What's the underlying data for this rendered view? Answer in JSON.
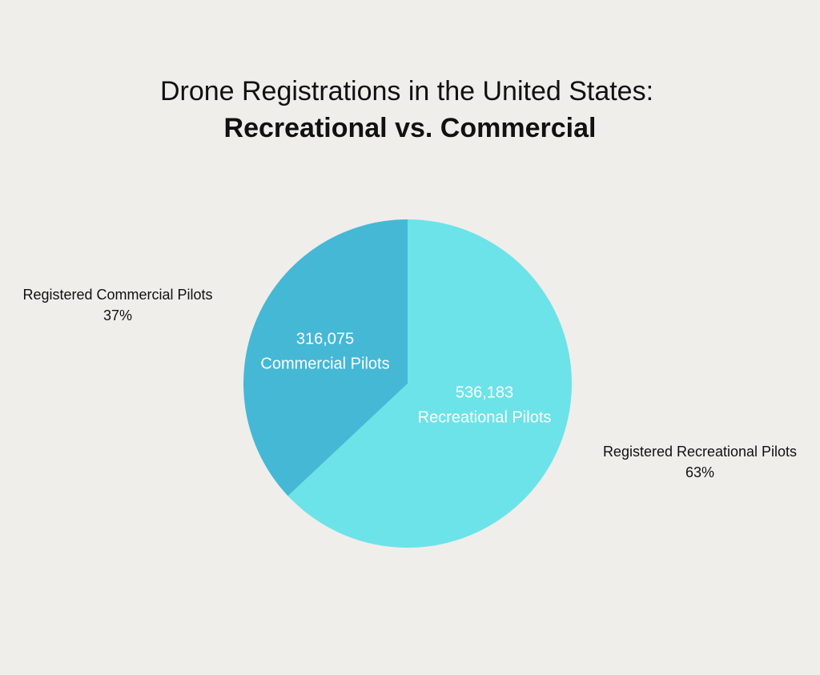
{
  "chart_data": {
    "type": "pie",
    "title": "Drone Registrations in the United States:",
    "subtitle": "Recreational vs. Commercial",
    "categories": [
      "Registered Recreational Pilots",
      "Registered Commercial Pilots"
    ],
    "values": [
      63,
      37
    ],
    "value_labels": [
      "63%",
      "37%"
    ],
    "counts": [
      536183,
      316075
    ],
    "count_labels": [
      "536,183",
      "316,075"
    ],
    "inner_labels": [
      "Recreational Pilots",
      "Commercial Pilots"
    ],
    "colors": [
      "#6ce3e8",
      "#45b8d6"
    ]
  }
}
